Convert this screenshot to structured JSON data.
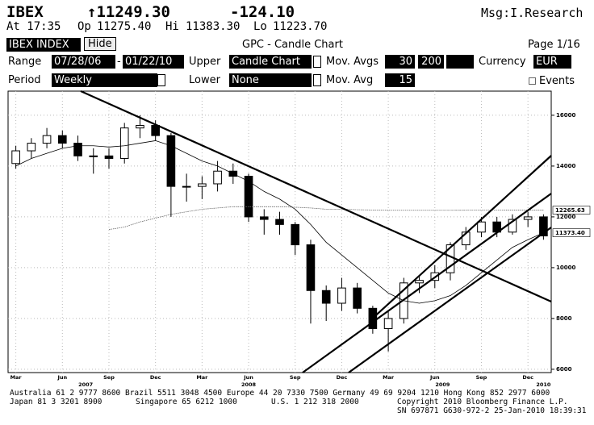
{
  "header": {
    "symbol": "IBEX",
    "last": "↑11249.30",
    "change": "-124.10",
    "msg": "Msg:I.Research",
    "time": "At 17:35",
    "open_label": "Op",
    "open": "11275.40",
    "high_label": "Hi",
    "high": "11383.30",
    "low_label": "Lo",
    "low": "11223.70"
  },
  "controls": {
    "ticker": "IBEX INDEX",
    "hide": "Hide",
    "title": "GPC - Candle Chart",
    "page": "Page 1/16",
    "range_label": "Range",
    "start": "07/28/06",
    "dash": "-",
    "end": "01/22/10",
    "upper_label": "Upper",
    "upper": "Candle Chart",
    "mov_avgs_label": "Mov. Avgs",
    "mov_avgs": [
      "30",
      "200"
    ],
    "currency_label": "Currency",
    "currency": "EUR",
    "period_label": "Period",
    "period": "Weekly",
    "lower_label": "Lower",
    "lower": "None",
    "mov_avg_label": "Mov. Avg",
    "mov_avg": "15",
    "events": "Events"
  },
  "chart_data": {
    "type": "candlestick",
    "categories": [
      "Mar",
      null,
      null,
      "Jun",
      null,
      null,
      "Sep",
      null,
      null,
      "Dec",
      null,
      null,
      "Mar",
      null,
      null,
      "Jun",
      null,
      null,
      "Sep",
      null,
      null,
      "Dec",
      null,
      null,
      "Mar",
      null,
      null,
      "Jun",
      null,
      null,
      "Sep",
      null,
      null,
      "Dec",
      null
    ],
    "years": [
      "2007",
      "2008",
      "2009",
      "2010"
    ],
    "open": [
      14100,
      14600,
      14900,
      15200,
      14900,
      14400,
      14400,
      14300,
      15500,
      15600,
      15200,
      13200,
      13200,
      13300,
      13800,
      13600,
      12000,
      11900,
      11700,
      10900,
      9100,
      8600,
      9200,
      8400,
      7600,
      8000,
      9400,
      9500,
      9800,
      10900,
      11400,
      11800,
      11400,
      11900,
      12000
    ],
    "high": [
      14800,
      15100,
      15500,
      15400,
      15200,
      14700,
      14700,
      15700,
      16000,
      15800,
      15300,
      13700,
      13600,
      14200,
      14100,
      13700,
      12300,
      12200,
      11800,
      11100,
      9300,
      9600,
      9400,
      8500,
      8300,
      9600,
      9700,
      10100,
      11000,
      11600,
      12000,
      12000,
      12100,
      12200,
      12100
    ],
    "low": [
      13900,
      14300,
      14700,
      14700,
      14200,
      13700,
      13900,
      14100,
      15100,
      15000,
      12000,
      12600,
      12700,
      13000,
      13300,
      11800,
      11300,
      11300,
      10500,
      7800,
      7900,
      8300,
      8200,
      7400,
      6700,
      7800,
      9000,
      9200,
      9500,
      10700,
      11200,
      11200,
      11300,
      11600,
      11100
    ],
    "close": [
      14600,
      14900,
      15200,
      14900,
      14400,
      14400,
      14300,
      15500,
      15600,
      15200,
      13200,
      13200,
      13300,
      13800,
      13600,
      12000,
      11900,
      11700,
      10900,
      9100,
      8600,
      9200,
      8400,
      7600,
      8000,
      9400,
      9500,
      9800,
      10900,
      11400,
      11800,
      11400,
      11900,
      12000,
      11249.3
    ],
    "moving_averages": [
      {
        "values": [
          14000,
          14300,
          14500,
          14700,
          14800,
          14800,
          14750,
          14800,
          14900,
          15000,
          14800,
          14500,
          14200,
          14000,
          13700,
          13400,
          13000,
          12700,
          12300,
          11700,
          11000,
          10500,
          10000,
          9500,
          9000,
          8700,
          8600,
          8700,
          8900,
          9300,
          9800,
          10300,
          10800,
          11100,
          11373.4
        ],
        "color": "#000000",
        "end_label": {
          "value": 11373.4,
          "label": "11373.40"
        }
      },
      {
        "values": [
          null,
          null,
          null,
          null,
          null,
          null,
          11500,
          11600,
          11800,
          11950,
          12100,
          12200,
          12300,
          12350,
          12400,
          12400,
          12400,
          12400,
          12380,
          12350,
          12300,
          12300,
          12280,
          12270,
          12260,
          12260,
          12260,
          12260,
          12260,
          12262,
          12263,
          12264,
          12265,
          12265,
          12265.63
        ],
        "color": "#666666",
        "end_label": {
          "value": 12265.63,
          "label": "12265.63"
        }
      }
    ],
    "up_color": "#ffffff",
    "down_color": "#000000",
    "ylim": [
      5870,
      16950
    ],
    "yticks": [
      6000,
      8000,
      10000,
      12000,
      14000,
      16000
    ],
    "grid": true
  },
  "footer": {
    "line1": "Australia 61 2 9777 8600 Brazil 5511 3048 4500 Europe 44 20 7330 7500 Germany 49 69 9204 1210 Hong Kong 852 2977 6000",
    "line2a": "Japan 81 3 3201 8900",
    "line2b": "Singapore 65 6212 1000",
    "line2c": "U.S. 1 212 318 2000",
    "line2d": "Copyright 2010 Bloomberg Finance L.P.",
    "line3": "SN 697871 G630-972-2 25-Jan-2010 18:39:31"
  }
}
